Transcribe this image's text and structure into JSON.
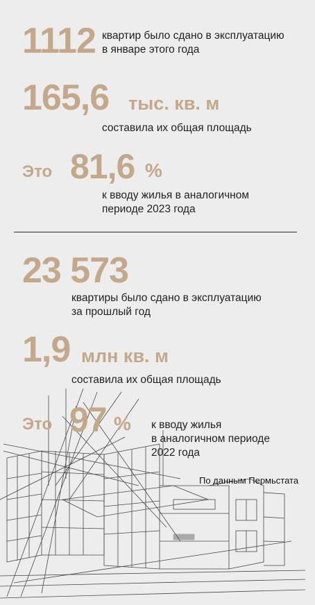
{
  "stats_2024": {
    "units_value": "1112",
    "units_text_line1": "квартир было сдано в эксплуатацию",
    "units_text_line2": "в январе этого года",
    "area_value": "165,6",
    "area_unit": "тыс. кв. м",
    "area_text": "составила их общая площадь",
    "share_prefix": "Это",
    "share_value": "81,6",
    "share_pct": "%",
    "share_text_line1": "к вводу жилья в аналогичном",
    "share_text_line2": "периоде 2023 года"
  },
  "stats_2023": {
    "units_value": "23 573",
    "units_text_line1": "квартиры  было сдано в эксплуатацию",
    "units_text_line2": "за прошлый год",
    "area_value": "1,9",
    "area_unit": "млн кв. м",
    "area_text": "составила их общая площадь",
    "share_prefix": "Это",
    "share_value": "97",
    "share_pct": "%",
    "share_text_line1": "к вводу жилья",
    "share_text_line2": "в аналогичном периоде",
    "share_text_line3": "2022 года"
  },
  "source": "По данным Пермьстата",
  "colors": {
    "accent": "#c4a88c",
    "background": "#ededed",
    "text": "#1f1f1f"
  }
}
